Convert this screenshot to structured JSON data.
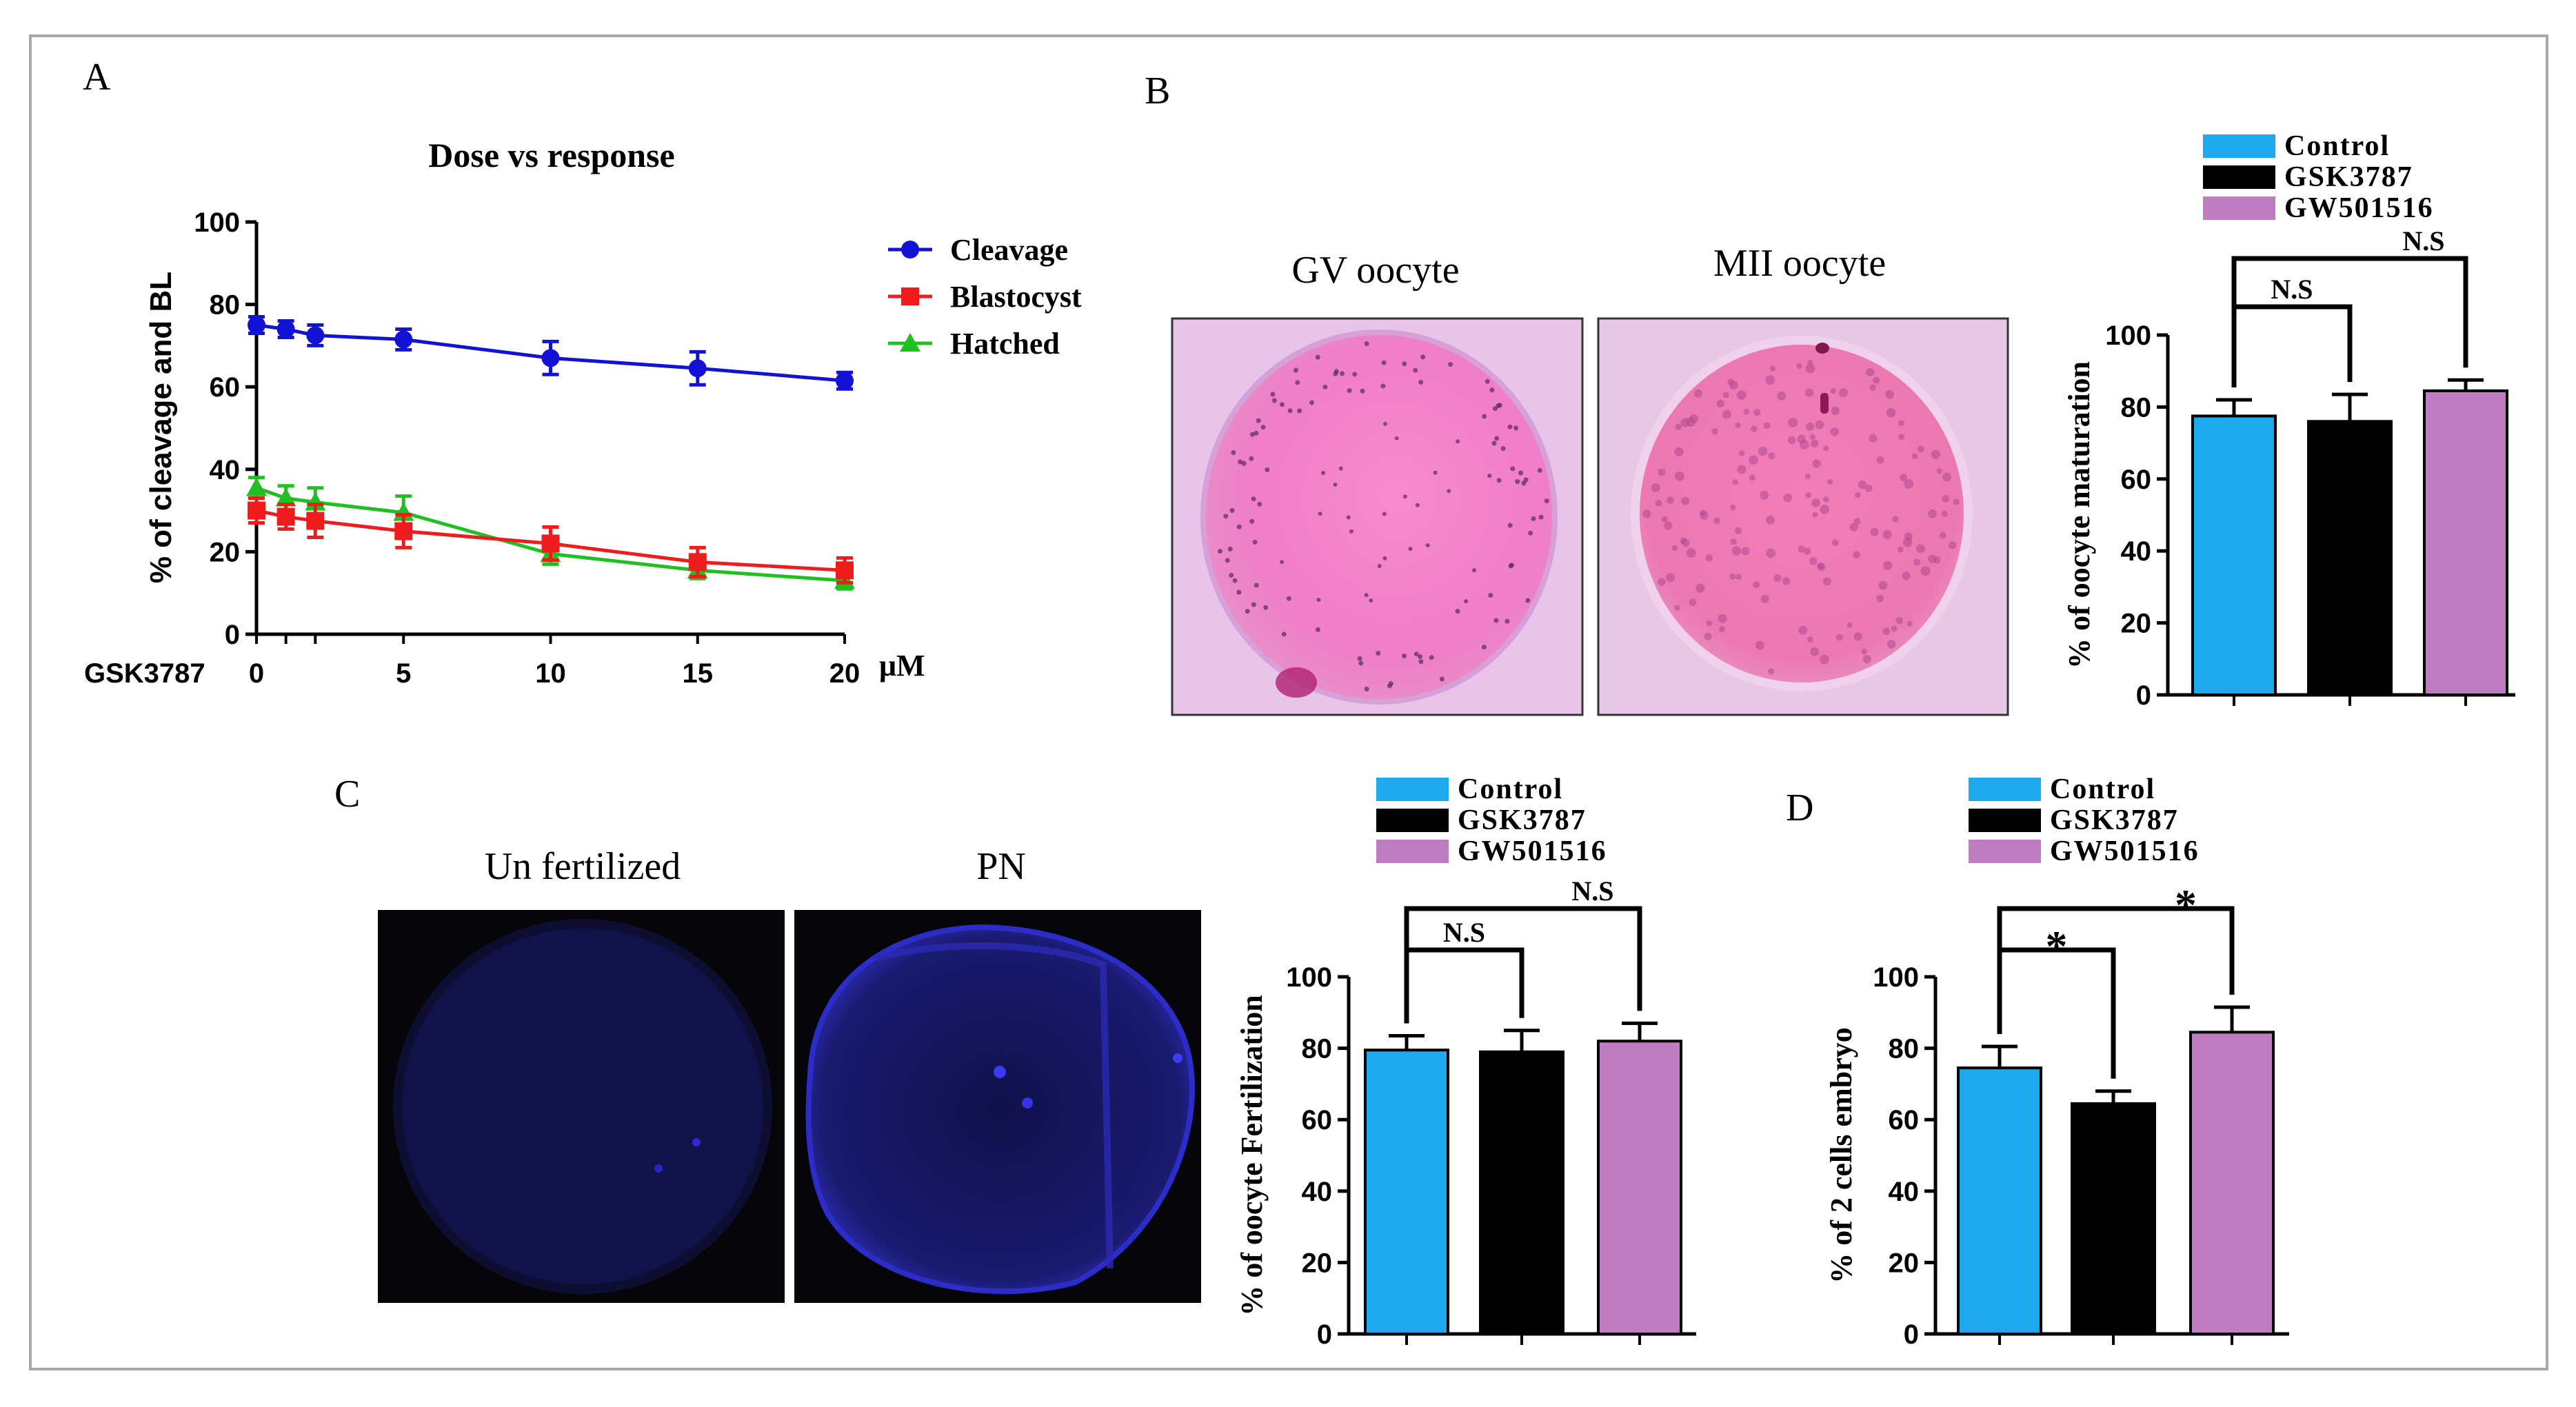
{
  "panels": {
    "a": {
      "letter": "A"
    },
    "b": {
      "letter": "B",
      "gv_caption": "GV oocyte",
      "mii_caption": "MII oocyte"
    },
    "c": {
      "letter": "C",
      "unfert_caption": "Un fertilized",
      "pn_caption": "PN"
    },
    "d": {
      "letter": "D"
    }
  },
  "colors": {
    "cleavage": "#1212d6",
    "blastocyst": "#ee1c1c",
    "hatched": "#20c020",
    "control": "#1ea8ee",
    "gsk": "#000000",
    "gw": "#c07cc0",
    "gv_bg": "#e8c4e8",
    "gv_cell": "#f07ec8",
    "mii_bg": "#e6c8e6",
    "mii_cell": "#ee7ab4",
    "fluor_bg": "#06060a",
    "fluor_cell": "#1c1c6e",
    "fluor_pn": "#2c2cc8"
  },
  "chart_data": [
    {
      "id": "A",
      "type": "line",
      "title": "Dose vs response",
      "xlabel": "GSK3787",
      "xunit": "μM",
      "ylabel": "% of cleavage and BL",
      "x": [
        0,
        1,
        2,
        5,
        10,
        15,
        20
      ],
      "xticks": [
        "0",
        "5",
        "10",
        "15",
        "20"
      ],
      "yticks": [
        "0",
        "20",
        "40",
        "60",
        "80",
        "100"
      ],
      "ylim": [
        0,
        100
      ],
      "legend_position": "right",
      "series": [
        {
          "name": "Cleavage",
          "marker": "circle",
          "values": [
            75,
            74,
            72.5,
            71.5,
            67,
            64.5,
            61.5
          ],
          "errors": [
            2,
            2,
            2.5,
            2.5,
            4,
            4,
            2
          ]
        },
        {
          "name": "Blastocyst",
          "marker": "square",
          "values": [
            30,
            28.5,
            27.5,
            25,
            22,
            17.5,
            15.5
          ],
          "errors": [
            3,
            3,
            4,
            4,
            4,
            3.5,
            3
          ]
        },
        {
          "name": "Hatched",
          "marker": "triangle",
          "values": [
            35.5,
            33,
            32,
            29.5,
            19.5,
            15.5,
            13
          ],
          "errors": [
            2.5,
            3,
            3.5,
            4,
            2.5,
            2,
            2
          ]
        }
      ]
    },
    {
      "id": "B",
      "type": "bar",
      "ylabel": "% of oocyte maturation",
      "categories": [
        "Control",
        "GSK3787",
        "GW501516"
      ],
      "values": [
        77.5,
        76,
        84.5
      ],
      "errors": [
        4.5,
        7.5,
        3
      ],
      "yticks": [
        "0",
        "20",
        "40",
        "60",
        "80",
        "100"
      ],
      "ylim": [
        0,
        100
      ],
      "legend_position": "top",
      "sig_inner": "N.S",
      "sig_outer": "N.S"
    },
    {
      "id": "C",
      "type": "bar",
      "ylabel": "% of oocyte Fertilization",
      "categories": [
        "Control",
        "GSK3787",
        "GW501516"
      ],
      "values": [
        79.5,
        79,
        82
      ],
      "errors": [
        4,
        6,
        5
      ],
      "yticks": [
        "0",
        "20",
        "40",
        "60",
        "80",
        "100"
      ],
      "ylim": [
        0,
        100
      ],
      "legend_position": "top",
      "sig_inner": "N.S",
      "sig_outer": "N.S"
    },
    {
      "id": "D",
      "type": "bar",
      "ylabel": "% of 2 cells embryo",
      "categories": [
        "Control",
        "GSK3787",
        "GW501516"
      ],
      "values": [
        74.5,
        64.5,
        84.5
      ],
      "errors": [
        6,
        3.5,
        7
      ],
      "yticks": [
        "0",
        "20",
        "40",
        "60",
        "80",
        "100"
      ],
      "ylim": [
        0,
        100
      ],
      "legend_position": "top",
      "sig_inner": "*",
      "sig_outer": "*"
    }
  ]
}
